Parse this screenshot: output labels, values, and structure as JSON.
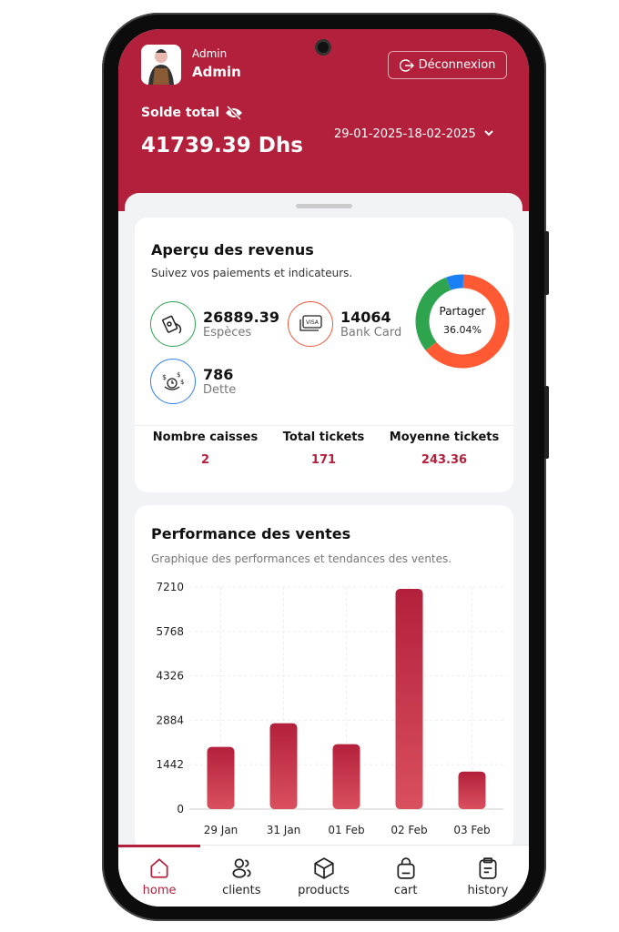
{
  "header": {
    "role": "Admin",
    "name": "Admin",
    "logout_label": "Déconnexion",
    "balance_label": "Solde total",
    "balance": "41739.39 Dhs",
    "date_range": "29-01-2025-18-02-2025",
    "brand_color": "#b3203b"
  },
  "revenue": {
    "title": "Aperçu des revenus",
    "subtitle": "Suivez vos paiements et indicateurs.",
    "stats": [
      {
        "value": "26889.39",
        "label": "Espèces",
        "color": "#2ea44f",
        "icon": "cash-hand-icon"
      },
      {
        "value": "14064",
        "label": "Bank Card",
        "color": "#f0573a",
        "icon": "visa-card-icon"
      },
      {
        "value": "786",
        "label": "Dette",
        "color": "#2f80ed",
        "icon": "coins-clock-icon"
      }
    ],
    "donut": {
      "label": "Partager",
      "percent": "36.04%",
      "segments": [
        {
          "color": "#ff5a33",
          "fraction": 0.64
        },
        {
          "color": "#2ea44f",
          "fraction": 0.3
        },
        {
          "color": "#1a7ef5",
          "fraction": 0.06
        }
      ]
    },
    "metrics": [
      {
        "label": "Nombre caisses",
        "value": "2"
      },
      {
        "label": "Total tickets",
        "value": "171"
      },
      {
        "label": "Moyenne tickets",
        "value": "243.36"
      }
    ]
  },
  "performance": {
    "title": "Performance des ventes",
    "subtitle": "Graphique des performances et tendances des ventes."
  },
  "chart_data": {
    "type": "bar",
    "categories": [
      "29 Jan",
      "31 Jan",
      "01 Feb",
      "02 Feb",
      "03 Feb"
    ],
    "values": [
      2020,
      2790,
      2110,
      7150,
      1220
    ],
    "yticks": [
      "0",
      "1442",
      "2884",
      "4326",
      "5768",
      "7210"
    ],
    "ylim": [
      0,
      7210
    ],
    "grid": true
  },
  "nav": [
    {
      "label": "home",
      "icon": "home-icon",
      "active": true
    },
    {
      "label": "clients",
      "icon": "users-icon"
    },
    {
      "label": "products",
      "icon": "box-icon"
    },
    {
      "label": "cart",
      "icon": "bag-icon"
    },
    {
      "label": "history",
      "icon": "clipboard-icon"
    }
  ]
}
